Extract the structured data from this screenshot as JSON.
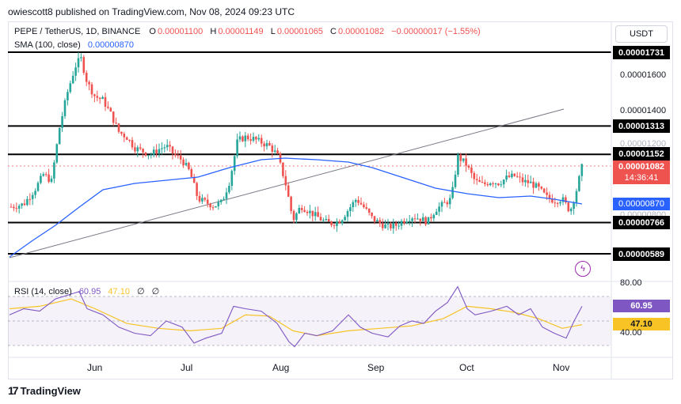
{
  "header": {
    "publisher_line": "owiescott8 published on TradingView.com, Nov 08, 2024 09:23 UTC"
  },
  "symbol": {
    "name": "PEPE / TetherUS, 1D, BINANCE",
    "o_label": "O",
    "o_value": "0.00001100",
    "h_label": "H",
    "h_value": "0.00001149",
    "l_label": "L",
    "l_value": "0.00001065",
    "c_label": "C",
    "c_value": "0.00001082",
    "change": "−0.00000017 (−1.55%)"
  },
  "sma": {
    "label": "SMA (100, close)",
    "value": "0.00000870"
  },
  "currency_button": "USDT",
  "price_axis": {
    "ticks": [
      "0.00001600",
      "0.00001400",
      "0.00001200",
      "0.00000800"
    ],
    "levels": [
      "0.00001731",
      "0.00001313",
      "0.00001152",
      "0.00000766",
      "0.00000589"
    ],
    "current_price": "0.00001082",
    "countdown": "14:36:41",
    "sma_tag": "0.00000870"
  },
  "rsi": {
    "label": "RSI (14, close)",
    "value": "60.95",
    "ma_value": "47.10",
    "extra1": "∅",
    "extra2": "∅",
    "axis_top": "80.00",
    "axis_bottom": "40.00"
  },
  "time_axis": [
    "Jun",
    "Jul",
    "Aug",
    "Sep",
    "Oct",
    "Nov"
  ],
  "footer": {
    "brand": "TradingView"
  },
  "colors": {
    "up": "#26a69a",
    "down": "#ef5350",
    "sma": "#2962ff",
    "rsi": "#7e57c2",
    "rsi_ma": "#f7c325",
    "current_tag": "#ef5350",
    "sma_tag": "#2962ff"
  },
  "icons": {
    "footer_logo": "tradingview-logo-icon",
    "bolt": "lightning-icon"
  }
}
